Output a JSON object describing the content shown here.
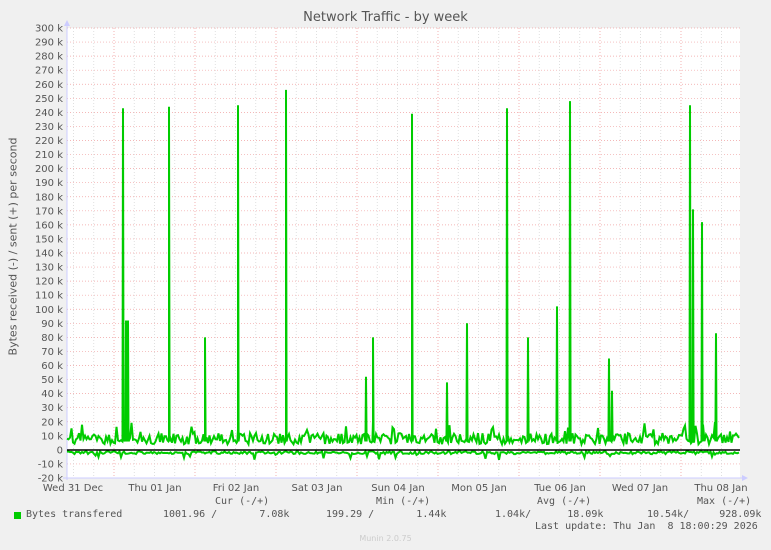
{
  "title": "Network Traffic - by week",
  "y_axis_label": "Bytes received (-) / sent (+) per second",
  "credit": "RRDTOOL / TOBI OETIKER",
  "legend": {
    "headers": {
      "cur": "Cur (-/+)",
      "min": "Min (-/+)",
      "avg": "Avg (-/+)",
      "max": "Max (-/+)"
    },
    "series_name": "Bytes transfered",
    "color": "#00cc00",
    "cur": "1001.96 /       7.08k",
    "min": "199.29 /       1.44k",
    "avg": "1.04k/      18.09k",
    "max": "10.54k/     928.09k",
    "last_update": "Last update: Thu Jan  8 18:00:29 2026"
  },
  "footer": "Munin 2.0.75",
  "chart_data": {
    "type": "line",
    "title": "Network Traffic - by week",
    "xlabel": "",
    "ylabel": "Bytes received (-) / sent (+) per second",
    "ylim": [
      -20000,
      300000
    ],
    "yticks": [
      "300 k",
      "290 k",
      "280 k",
      "270 k",
      "260 k",
      "250 k",
      "240 k",
      "230 k",
      "220 k",
      "210 k",
      "200 k",
      "190 k",
      "180 k",
      "170 k",
      "160 k",
      "150 k",
      "140 k",
      "130 k",
      "120 k",
      "110 k",
      "100 k",
      "90 k",
      "80 k",
      "70 k",
      "60 k",
      "50 k",
      "40 k",
      "30 k",
      "20 k",
      "10 k",
      "0",
      "-10 k",
      "-20 k"
    ],
    "xticks": [
      "Wed 31 Dec",
      "Thu 01 Jan",
      "Fri 02 Jan",
      "Sat 03 Jan",
      "Sun 04 Jan",
      "Mon 05 Jan",
      "Tue 06 Jan",
      "Wed 07 Jan",
      "Thu 08 Jan"
    ],
    "grid": true,
    "legend_position": "bottom",
    "series": [
      {
        "name": "Bytes transfered (sent, +)",
        "color": "#00cc00",
        "approx_spikes_k": [
          {
            "day": "Wed 31 Dec late",
            "value": 243
          },
          {
            "day": "Wed 31 Dec late",
            "value": 92
          },
          {
            "day": "Thu 01 Jan",
            "value": 92
          },
          {
            "day": "Thu 01 Jan late",
            "value": 244
          },
          {
            "day": "Fri 02 Jan",
            "value": 80
          },
          {
            "day": "Fri 02 Jan late",
            "value": 245
          },
          {
            "day": "Sat 03 Jan late",
            "value": 256
          },
          {
            "day": "Sun 04 Jan",
            "value": 52
          },
          {
            "day": "Sun 04 Jan",
            "value": 80
          },
          {
            "day": "Sun 04 Jan late",
            "value": 239
          },
          {
            "day": "Mon 05 Jan",
            "value": 48
          },
          {
            "day": "Mon 05 Jan late",
            "value": 90
          },
          {
            "day": "Mon 05 Jan late",
            "value": 243
          },
          {
            "day": "Tue 06 Jan",
            "value": 80
          },
          {
            "day": "Tue 06 Jan",
            "value": 102
          },
          {
            "day": "Tue 06 Jan late",
            "value": 248
          },
          {
            "day": "Wed 07 Jan",
            "value": 65
          },
          {
            "day": "Wed 07 Jan",
            "value": 42
          },
          {
            "day": "Thu 08 Jan",
            "value": 245
          },
          {
            "day": "Thu 08 Jan",
            "value": 171
          },
          {
            "day": "Thu 08 Jan",
            "value": 162
          },
          {
            "day": "Thu 08 Jan",
            "value": 83
          }
        ],
        "baseline_k": [
          3,
          15
        ]
      },
      {
        "name": "Bytes transfered (received, -)",
        "color": "#00cc00",
        "baseline_k": [
          -1,
          -10
        ]
      }
    ]
  }
}
